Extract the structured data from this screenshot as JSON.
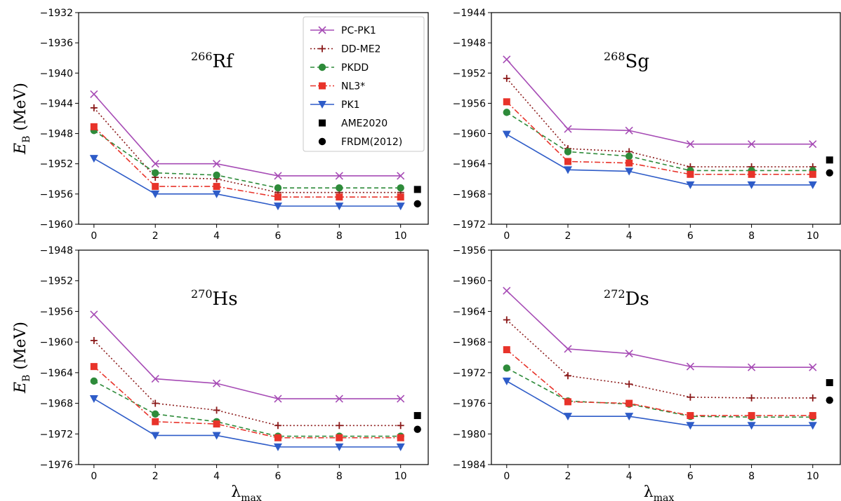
{
  "figure": {
    "ylabel": "E",
    "ylabel_sub": "B",
    "ylabel_unit": "(MeV)",
    "xlabel": "λ",
    "xlabel_sub": "max"
  },
  "legend": {
    "entries": [
      {
        "name": "PC-PK1",
        "color": "#a64bb5",
        "dash": "",
        "marker": "x"
      },
      {
        "name": "DD-ME2",
        "color": "#8b1a1a",
        "dash": "2,3",
        "marker": "plus"
      },
      {
        "name": "PKDD",
        "color": "#2e8b3a",
        "dash": "6,4",
        "marker": "circle"
      },
      {
        "name": "NL3*",
        "color": "#e8332a",
        "dash": "8,3,2,3",
        "marker": "square"
      },
      {
        "name": "PK1",
        "color": "#2e5cc8",
        "dash": "",
        "marker": "tri-down"
      },
      {
        "name": "AME2020",
        "color": "#000000",
        "dash": "none",
        "marker": "square"
      },
      {
        "name": "FRDM(2012)",
        "color": "#000000",
        "dash": "none",
        "marker": "circle"
      }
    ]
  },
  "chart_data": [
    {
      "type": "line",
      "nucleus_mass": "266",
      "nucleus_symbol": "Rf",
      "x": [
        0,
        2,
        4,
        6,
        8,
        10
      ],
      "xlim": [
        -0.5,
        10.9
      ],
      "ylim": [
        -1960,
        -1932
      ],
      "yticks": [
        -1932,
        -1936,
        -1940,
        -1944,
        -1948,
        -1952,
        -1956,
        -1960
      ],
      "xticks": [
        0,
        2,
        4,
        6,
        8,
        10
      ],
      "series": [
        {
          "name": "PC-PK1",
          "values": [
            -1942.8,
            -1952.0,
            -1952.0,
            -1953.6,
            -1953.6,
            -1953.6
          ]
        },
        {
          "name": "DD-ME2",
          "values": [
            -1944.6,
            -1953.8,
            -1954.0,
            -1955.8,
            -1955.8,
            -1955.8
          ]
        },
        {
          "name": "PKDD",
          "values": [
            -1947.6,
            -1953.2,
            -1953.5,
            -1955.2,
            -1955.2,
            -1955.2
          ]
        },
        {
          "name": "NL3*",
          "values": [
            -1947.1,
            -1955.0,
            -1955.0,
            -1956.4,
            -1956.4,
            -1956.4
          ]
        },
        {
          "name": "PK1",
          "values": [
            -1951.3,
            -1956.0,
            -1956.0,
            -1957.6,
            -1957.6,
            -1957.6
          ]
        }
      ],
      "reference": [
        {
          "name": "AME2020",
          "x": 10.55,
          "value": -1955.4
        },
        {
          "name": "FRDM(2012)",
          "x": 10.55,
          "value": -1957.3
        }
      ]
    },
    {
      "type": "line",
      "nucleus_mass": "268",
      "nucleus_symbol": "Sg",
      "x": [
        0,
        2,
        4,
        6,
        8,
        10
      ],
      "xlim": [
        -0.5,
        10.9
      ],
      "ylim": [
        -1972,
        -1944
      ],
      "yticks": [
        -1944,
        -1948,
        -1952,
        -1956,
        -1960,
        -1964,
        -1968,
        -1972
      ],
      "xticks": [
        0,
        2,
        4,
        6,
        8,
        10
      ],
      "series": [
        {
          "name": "PC-PK1",
          "values": [
            -1950.2,
            -1959.4,
            -1959.6,
            -1961.4,
            -1961.4,
            -1961.4
          ]
        },
        {
          "name": "DD-ME2",
          "values": [
            -1952.7,
            -1962.0,
            -1962.4,
            -1964.4,
            -1964.4,
            -1964.4
          ]
        },
        {
          "name": "PKDD",
          "values": [
            -1957.2,
            -1962.4,
            -1963.0,
            -1964.9,
            -1964.9,
            -1964.9
          ]
        },
        {
          "name": "NL3*",
          "values": [
            -1955.8,
            -1963.7,
            -1963.9,
            -1965.4,
            -1965.4,
            -1965.4
          ]
        },
        {
          "name": "PK1",
          "values": [
            -1960.1,
            -1964.8,
            -1965.0,
            -1966.8,
            -1966.8,
            -1966.8
          ]
        }
      ],
      "reference": [
        {
          "name": "AME2020",
          "x": 10.55,
          "value": -1963.5
        },
        {
          "name": "FRDM(2012)",
          "x": 10.55,
          "value": -1965.2
        }
      ]
    },
    {
      "type": "line",
      "nucleus_mass": "270",
      "nucleus_symbol": "Hs",
      "x": [
        0,
        2,
        4,
        6,
        8,
        10
      ],
      "xlim": [
        -0.5,
        10.9
      ],
      "ylim": [
        -1976,
        -1948
      ],
      "yticks": [
        -1948,
        -1952,
        -1956,
        -1960,
        -1964,
        -1968,
        -1972,
        -1976
      ],
      "xticks": [
        0,
        2,
        4,
        6,
        8,
        10
      ],
      "series": [
        {
          "name": "PC-PK1",
          "values": [
            -1956.4,
            -1964.8,
            -1965.4,
            -1967.4,
            -1967.4,
            -1967.4
          ]
        },
        {
          "name": "DD-ME2",
          "values": [
            -1959.8,
            -1968.0,
            -1968.9,
            -1970.9,
            -1970.9,
            -1970.9
          ]
        },
        {
          "name": "PKDD",
          "values": [
            -1965.1,
            -1969.4,
            -1970.4,
            -1972.3,
            -1972.3,
            -1972.3
          ]
        },
        {
          "name": "NL3*",
          "values": [
            -1963.2,
            -1970.4,
            -1970.7,
            -1972.5,
            -1972.5,
            -1972.5
          ]
        },
        {
          "name": "PK1",
          "values": [
            -1967.4,
            -1972.2,
            -1972.2,
            -1973.7,
            -1973.7,
            -1973.7
          ]
        }
      ],
      "reference": [
        {
          "name": "AME2020",
          "x": 10.55,
          "value": -1969.6
        },
        {
          "name": "FRDM(2012)",
          "x": 10.55,
          "value": -1971.4
        }
      ]
    },
    {
      "type": "line",
      "nucleus_mass": "272",
      "nucleus_symbol": "Ds",
      "x": [
        0,
        2,
        4,
        6,
        8,
        10
      ],
      "xlim": [
        -0.5,
        10.9
      ],
      "ylim": [
        -1984,
        -1956
      ],
      "yticks": [
        -1956,
        -1960,
        -1964,
        -1968,
        -1972,
        -1976,
        -1980,
        -1984
      ],
      "xticks": [
        0,
        2,
        4,
        6,
        8,
        10
      ],
      "series": [
        {
          "name": "PC-PK1",
          "values": [
            -1961.3,
            -1968.9,
            -1969.5,
            -1971.2,
            -1971.3,
            -1971.3
          ]
        },
        {
          "name": "DD-ME2",
          "values": [
            -1965.1,
            -1972.4,
            -1973.5,
            -1975.2,
            -1975.3,
            -1975.3
          ]
        },
        {
          "name": "PKDD",
          "values": [
            -1971.4,
            -1975.7,
            -1976.1,
            -1977.7,
            -1977.8,
            -1977.8
          ]
        },
        {
          "name": "NL3*",
          "values": [
            -1969.0,
            -1975.8,
            -1976.0,
            -1977.6,
            -1977.6,
            -1977.6
          ]
        },
        {
          "name": "PK1",
          "values": [
            -1973.1,
            -1977.7,
            -1977.7,
            -1978.9,
            -1978.9,
            -1978.9
          ]
        }
      ],
      "reference": [
        {
          "name": "AME2020",
          "x": 10.55,
          "value": -1973.3
        },
        {
          "name": "FRDM(2012)",
          "x": 10.55,
          "value": -1975.6
        }
      ]
    }
  ]
}
